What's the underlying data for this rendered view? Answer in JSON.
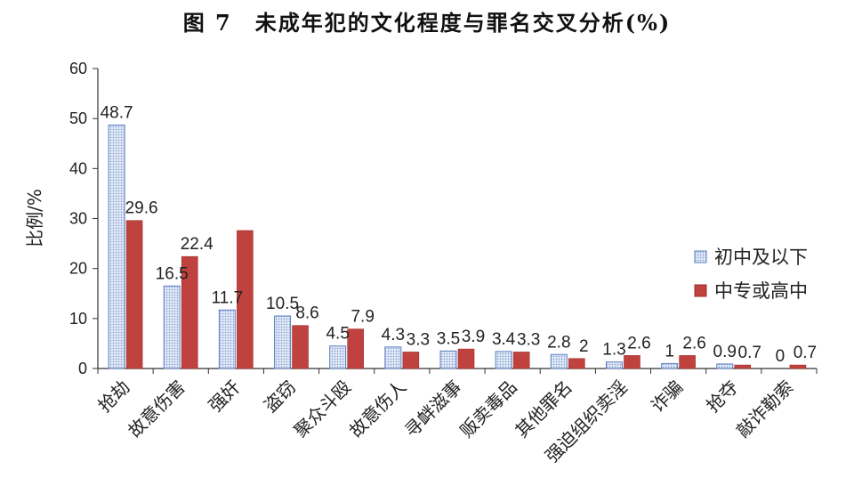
{
  "chart_data": {
    "type": "bar",
    "title": "图 7　未成年犯的文化程度与罪名交叉分析(%)",
    "ylabel": "比例/%",
    "xlabel": "",
    "ylim": [
      0,
      60
    ],
    "yticks": [
      0,
      10,
      20,
      30,
      40,
      50,
      60
    ],
    "grid": false,
    "legend_position": "right",
    "categories": [
      "抢劫",
      "故意伤害",
      "强奸",
      "盗窃",
      "聚众斗殴",
      "故意伤人",
      "寻衅滋事",
      "贩卖毒品",
      "其他罪名",
      "强迫组织卖淫",
      "诈骗",
      "抢夺",
      "敲诈勒索"
    ],
    "series": [
      {
        "name": "初中及以下",
        "color": "#c9d6ee",
        "border": "#5b7fc2",
        "values": [
          48.7,
          16.5,
          11.7,
          10.5,
          4.5,
          4.3,
          3.5,
          3.4,
          2.8,
          1.3,
          1,
          0.9,
          0
        ],
        "labels": [
          "48.7",
          "16.5",
          "11.7",
          "10.5",
          "4.5",
          "4.3",
          "3.5",
          "3.4",
          "2.8",
          "1.3",
          "1",
          "0.9",
          "0"
        ]
      },
      {
        "name": "中专或高中",
        "color": "#c0423f",
        "border": "#9e2f2c",
        "values": [
          29.6,
          22.4,
          27.6,
          8.6,
          7.9,
          3.3,
          3.9,
          3.3,
          2,
          2.6,
          2.6,
          0.7,
          0.7
        ],
        "labels": [
          "29.6",
          "22.4",
          "",
          "8.6",
          "7.9",
          "3.3",
          "3.9",
          "3.3",
          "2",
          "2.6",
          "2.6",
          "0.7",
          "0.7"
        ]
      }
    ]
  }
}
